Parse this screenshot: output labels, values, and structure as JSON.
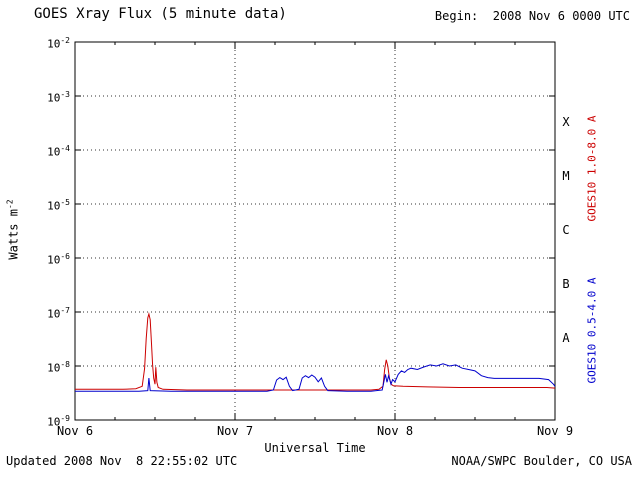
{
  "header": {
    "title": "GOES Xray Flux (5 minute data)",
    "begin_label": "Begin:  2008 Nov 6 0000 UTC"
  },
  "footer": {
    "updated": "Updated 2008 Nov  8 22:55:02 UTC",
    "source": "NOAA/SWPC Boulder, CO USA"
  },
  "axes": {
    "ylabel_base": "Watts m",
    "ylabel_exp": "-2",
    "xlabel": "Universal Time"
  },
  "chart_data": {
    "type": "line",
    "title": "GOES Xray Flux (5 minute data)",
    "xlabel": "Universal Time",
    "ylabel": "Watts m^-2",
    "xlim_days": [
      0,
      3
    ],
    "ylim_exp": [
      -9,
      -2
    ],
    "ylim": [
      1e-09,
      0.01
    ],
    "x_ticks": [
      {
        "t": 0,
        "label": "Nov 6"
      },
      {
        "t": 1,
        "label": "Nov 7"
      },
      {
        "t": 2,
        "label": "Nov 8"
      },
      {
        "t": 3,
        "label": "Nov 9"
      }
    ],
    "y_exponents": [
      -2,
      -3,
      -4,
      -5,
      -6,
      -7,
      -8,
      -9
    ],
    "grid": {
      "h_dotted_exponents": [
        -3,
        -4,
        -5,
        -6,
        -7,
        -8
      ],
      "v_dotted_days": [
        1,
        2
      ]
    },
    "flare_classes": [
      {
        "label": "X",
        "between": [
          -4,
          -3
        ]
      },
      {
        "label": "M",
        "between": [
          -5,
          -4
        ]
      },
      {
        "label": "C",
        "between": [
          -6,
          -5
        ]
      },
      {
        "label": "B",
        "between": [
          -7,
          -6
        ]
      },
      {
        "label": "A",
        "between": [
          -8,
          -7
        ]
      }
    ],
    "right_labels": [
      {
        "text": "GOES10 1.0-8.0 A",
        "color": "#cc0000"
      },
      {
        "text": "GOES10 0.5-4.0 A",
        "color": "#0000cc"
      }
    ],
    "series": [
      {
        "name": "GOES10 1.0-8.0 A",
        "color": "#cc0000",
        "points": [
          [
            0.0,
            3.7e-09
          ],
          [
            0.1,
            3.7e-09
          ],
          [
            0.2,
            3.7e-09
          ],
          [
            0.3,
            3.7e-09
          ],
          [
            0.38,
            3.8e-09
          ],
          [
            0.42,
            4.2e-09
          ],
          [
            0.435,
            9e-09
          ],
          [
            0.445,
            3.2e-08
          ],
          [
            0.455,
            7.8e-08
          ],
          [
            0.462,
            9.2e-08
          ],
          [
            0.47,
            7.2e-08
          ],
          [
            0.478,
            2.6e-08
          ],
          [
            0.485,
            1.05e-08
          ],
          [
            0.492,
            6e-09
          ],
          [
            0.5,
            4.6e-09
          ],
          [
            0.505,
            9.5e-09
          ],
          [
            0.512,
            5e-09
          ],
          [
            0.52,
            4e-09
          ],
          [
            0.55,
            3.7e-09
          ],
          [
            0.7,
            3.6e-09
          ],
          [
            0.9,
            3.6e-09
          ],
          [
            1.1,
            3.6e-09
          ],
          [
            1.3,
            3.6e-09
          ],
          [
            1.5,
            3.6e-09
          ],
          [
            1.7,
            3.6e-09
          ],
          [
            1.85,
            3.6e-09
          ],
          [
            1.9,
            3.7e-09
          ],
          [
            1.925,
            4.2e-09
          ],
          [
            1.935,
            8.5e-09
          ],
          [
            1.945,
            1.3e-08
          ],
          [
            1.955,
            1e-08
          ],
          [
            1.965,
            6e-09
          ],
          [
            1.975,
            4.6e-09
          ],
          [
            1.99,
            4.3e-09
          ],
          [
            2.05,
            4.2e-09
          ],
          [
            2.2,
            4.1e-09
          ],
          [
            2.4,
            4e-09
          ],
          [
            2.6,
            4e-09
          ],
          [
            2.8,
            4e-09
          ],
          [
            2.95,
            4e-09
          ],
          [
            3.0,
            3.9e-09
          ]
        ]
      },
      {
        "name": "GOES10 0.5-4.0 A",
        "color": "#0000cc",
        "points": [
          [
            0.0,
            3.4e-09
          ],
          [
            0.2,
            3.4e-09
          ],
          [
            0.4,
            3.4e-09
          ],
          [
            0.455,
            3.5e-09
          ],
          [
            0.462,
            6e-09
          ],
          [
            0.47,
            3.5e-09
          ],
          [
            0.6,
            3.4e-09
          ],
          [
            0.8,
            3.4e-09
          ],
          [
            1.0,
            3.4e-09
          ],
          [
            1.2,
            3.4e-09
          ],
          [
            1.24,
            3.6e-09
          ],
          [
            1.26,
            5.5e-09
          ],
          [
            1.28,
            6.1e-09
          ],
          [
            1.3,
            5.6e-09
          ],
          [
            1.32,
            6.2e-09
          ],
          [
            1.34,
            4.2e-09
          ],
          [
            1.36,
            3.5e-09
          ],
          [
            1.4,
            3.7e-09
          ],
          [
            1.42,
            6e-09
          ],
          [
            1.44,
            6.6e-09
          ],
          [
            1.46,
            6.1e-09
          ],
          [
            1.48,
            6.8e-09
          ],
          [
            1.5,
            6.2e-09
          ],
          [
            1.52,
            5.1e-09
          ],
          [
            1.54,
            6e-09
          ],
          [
            1.56,
            4.2e-09
          ],
          [
            1.58,
            3.5e-09
          ],
          [
            1.7,
            3.4e-09
          ],
          [
            1.85,
            3.4e-09
          ],
          [
            1.92,
            3.6e-09
          ],
          [
            1.94,
            7e-09
          ],
          [
            1.95,
            5e-09
          ],
          [
            1.96,
            6.6e-09
          ],
          [
            1.975,
            4.6e-09
          ],
          [
            1.985,
            5.6e-09
          ],
          [
            2.0,
            5.1e-09
          ],
          [
            2.02,
            7e-09
          ],
          [
            2.04,
            8.1e-09
          ],
          [
            2.06,
            7.6e-09
          ],
          [
            2.08,
            8.6e-09
          ],
          [
            2.1,
            9.1e-09
          ],
          [
            2.14,
            8.6e-09
          ],
          [
            2.18,
            9.6e-09
          ],
          [
            2.22,
            1.05e-08
          ],
          [
            2.26,
            1e-08
          ],
          [
            2.3,
            1.1e-08
          ],
          [
            2.34,
            1e-08
          ],
          [
            2.38,
            1.05e-08
          ],
          [
            2.42,
            9.1e-09
          ],
          [
            2.46,
            8.6e-09
          ],
          [
            2.5,
            8.1e-09
          ],
          [
            2.54,
            6.6e-09
          ],
          [
            2.58,
            6.1e-09
          ],
          [
            2.62,
            5.9e-09
          ],
          [
            2.7,
            5.9e-09
          ],
          [
            2.8,
            5.9e-09
          ],
          [
            2.9,
            5.9e-09
          ],
          [
            2.96,
            5.6e-09
          ],
          [
            2.99,
            4.6e-09
          ],
          [
            3.0,
            4.2e-09
          ]
        ]
      }
    ]
  }
}
